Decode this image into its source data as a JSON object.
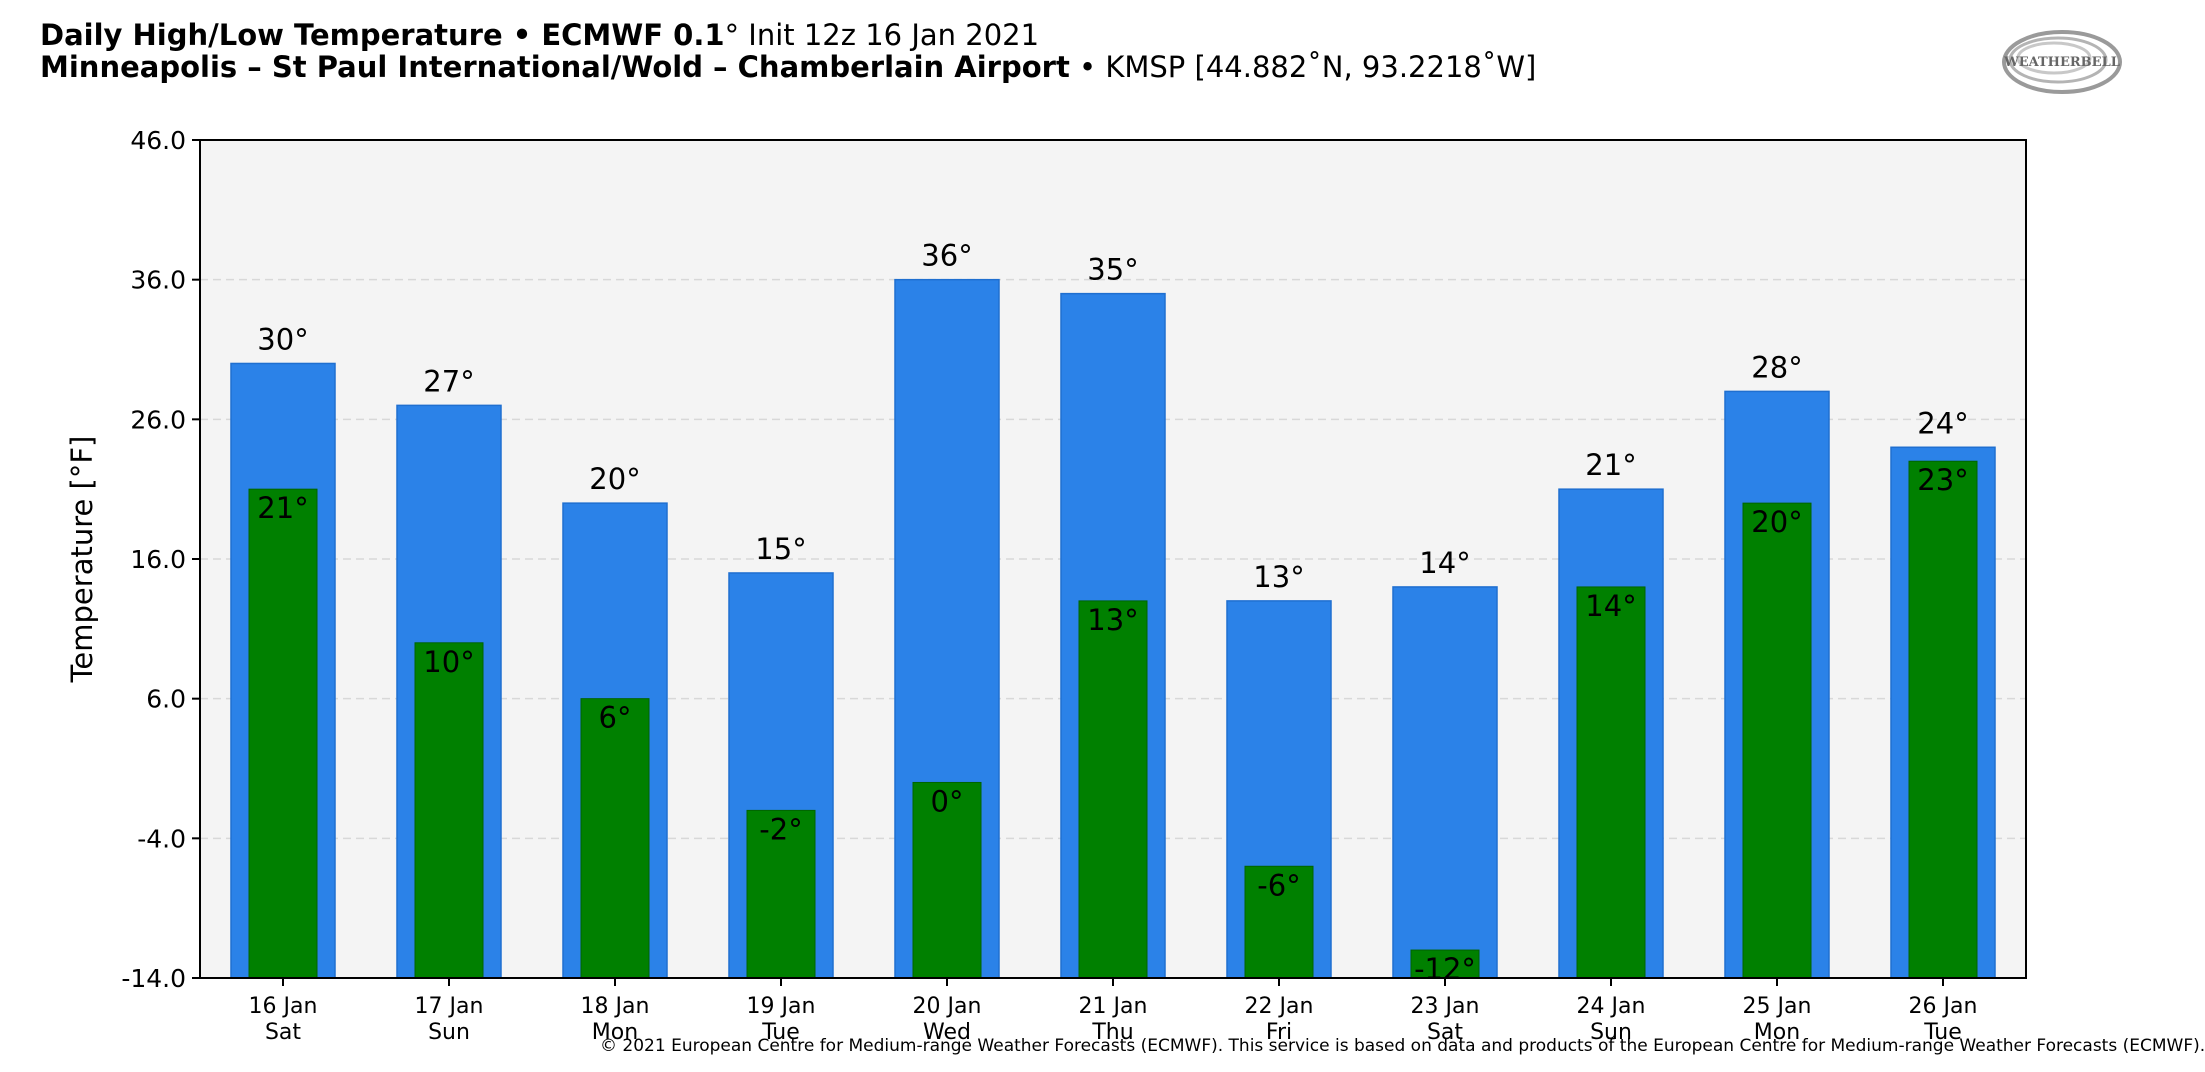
{
  "header": {
    "title_bold": "Daily High/Low Temperature • ECMWF 0.1",
    "title_deg": "°",
    "title_rest": "Init 12z 16 Jan 2021",
    "location_bold": "Minneapolis – St Paul International/Wold – Chamberlain Airport",
    "location_sep": " • ",
    "location_rest": "KMSP [44.882˚N, 93.2218˚W]"
  },
  "logo": {
    "text": "WEATHERBELL"
  },
  "footer": {
    "text": "© 2021 European Centre for Medium-range Weather Forecasts (ECMWF). This service is based on data and products of the European Centre for Medium-range Weather Forecasts (ECMWF)."
  },
  "chart_data": {
    "type": "bar",
    "title": "Daily High/Low Temperature",
    "xlabel": "",
    "ylabel": "Temperature [°F]",
    "ylim": [
      -14,
      46
    ],
    "yticks": [
      "46.0",
      "36.0",
      "26.0",
      "16.0",
      "6.0",
      "-4.0",
      "-14.0"
    ],
    "grid": true,
    "categories": [
      {
        "date": "16 Jan",
        "day": "Sat"
      },
      {
        "date": "17 Jan",
        "day": "Sun"
      },
      {
        "date": "18 Jan",
        "day": "Mon"
      },
      {
        "date": "19 Jan",
        "day": "Tue"
      },
      {
        "date": "20 Jan",
        "day": "Wed"
      },
      {
        "date": "21 Jan",
        "day": "Thu"
      },
      {
        "date": "22 Jan",
        "day": "Fri"
      },
      {
        "date": "23 Jan",
        "day": "Sat"
      },
      {
        "date": "24 Jan",
        "day": "Sun"
      },
      {
        "date": "25 Jan",
        "day": "Mon"
      },
      {
        "date": "26 Jan",
        "day": "Tue"
      }
    ],
    "series": [
      {
        "values": [
          30,
          27,
          20,
          15,
          36,
          35,
          13,
          14,
          21,
          28,
          24
        ],
        "labels": [
          "30°",
          "27°",
          "20°",
          "15°",
          "36°",
          "35°",
          "13°",
          "14°",
          "21°",
          "28°",
          "24°"
        ],
        "color": "#2b82e8"
      },
      {
        "values": [
          21,
          10,
          6,
          -2,
          0,
          13,
          -6,
          -12,
          14,
          20,
          23
        ],
        "labels": [
          "21°",
          "10°",
          "6°",
          "-2°",
          "0°",
          "13°",
          "-6°",
          "-12°",
          "14°",
          "20°",
          "23°"
        ],
        "color": "#008000"
      }
    ],
    "plot_background": "#f4f4f4"
  }
}
